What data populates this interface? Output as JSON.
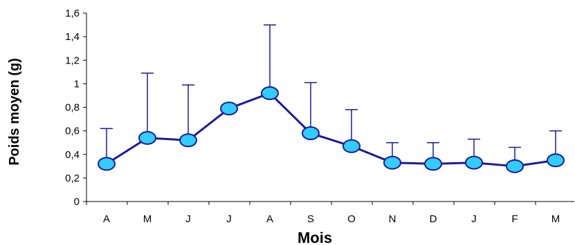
{
  "chart_data": {
    "type": "line",
    "title": "",
    "xlabel": "Mois",
    "ylabel": "Poids moyen (g)",
    "categories": [
      "A",
      "M",
      "J",
      "J",
      "A",
      "S",
      "O",
      "N",
      "D",
      "J",
      "F",
      "M"
    ],
    "series": [
      {
        "values": [
          0.32,
          0.54,
          0.52,
          0.79,
          0.92,
          0.58,
          0.47,
          0.33,
          0.32,
          0.33,
          0.3,
          0.35
        ],
        "error_upper": [
          0.62,
          1.09,
          0.99,
          0.79,
          1.5,
          1.01,
          0.78,
          0.5,
          0.5,
          0.53,
          0.46,
          0.6
        ]
      }
    ],
    "ylim": [
      0,
      1.6
    ],
    "yticks": [
      0,
      0.2,
      0.4,
      0.6,
      0.8,
      1,
      1.2,
      1.4,
      1.6
    ],
    "ytick_labels": [
      "0",
      "0,2",
      "0,4",
      "0,6",
      "0,8",
      "1",
      "1,2",
      "1,4",
      "1,6"
    ],
    "grid": false,
    "legend": "none",
    "colors": {
      "line": "#1a1a99",
      "marker_fill": "#33ccff",
      "marker_stroke": "#1a1a99",
      "error_bar": "#1a1a99",
      "axis": "#000000"
    }
  }
}
